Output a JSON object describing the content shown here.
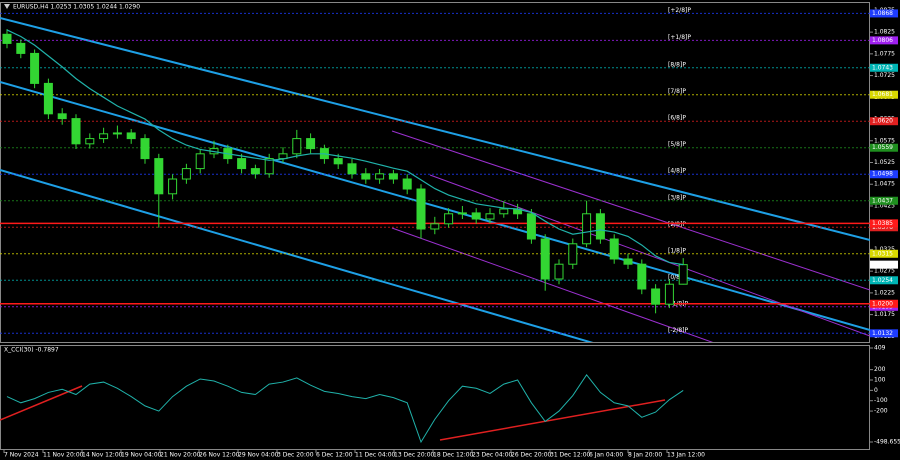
{
  "chart_data": [
    {
      "type": "candlestick",
      "title": "EURUSD,H4 1.0253 1.0305 1.0244 1.0290",
      "open": [
        1.082,
        1.0799,
        1.0776,
        1.0707,
        1.0637,
        1.0626,
        1.0568,
        1.058,
        1.0591,
        1.0593,
        1.058,
        1.0534,
        1.0453,
        1.0487,
        1.0511,
        1.0545,
        1.0557,
        1.0534,
        1.0511,
        1.0499,
        1.0534,
        1.0545,
        1.058,
        1.0557,
        1.0534,
        1.0522,
        1.0499,
        1.0487,
        1.0499,
        1.0487,
        1.0464,
        1.0372,
        1.0384,
        1.0407,
        1.0409,
        1.0395,
        1.0407,
        1.0418,
        1.0407,
        1.0349,
        1.0257,
        1.0291,
        1.0338,
        1.0407,
        1.0349,
        1.0303,
        1.0291,
        1.0234,
        1.0199,
        1.0245
      ],
      "high": [
        1.0832,
        1.0808,
        1.0785,
        1.0718,
        1.065,
        1.0636,
        1.0592,
        1.0605,
        1.061,
        1.0602,
        1.059,
        1.0545,
        1.0498,
        1.0522,
        1.0556,
        1.0575,
        1.0566,
        1.0545,
        1.052,
        1.0545,
        1.056,
        1.06,
        1.0592,
        1.0566,
        1.0545,
        1.0533,
        1.0512,
        1.051,
        1.0508,
        1.0498,
        1.0475,
        1.04,
        1.042,
        1.0425,
        1.042,
        1.042,
        1.0436,
        1.043,
        1.0418,
        1.036,
        1.0302,
        1.035,
        1.0437,
        1.0418,
        1.036,
        1.0315,
        1.0302,
        1.0245,
        1.0256,
        1.0305
      ],
      "low": [
        1.0788,
        1.0765,
        1.0696,
        1.0625,
        1.0612,
        1.0556,
        1.0557,
        1.057,
        1.058,
        1.0568,
        1.0522,
        1.0375,
        1.044,
        1.0476,
        1.05,
        1.0535,
        1.0522,
        1.05,
        1.0488,
        1.049,
        1.0525,
        1.0535,
        1.0546,
        1.0522,
        1.051,
        1.0488,
        1.0476,
        1.0476,
        1.0476,
        1.0452,
        1.035,
        1.036,
        1.0375,
        1.0395,
        1.0384,
        1.0385,
        1.0398,
        1.0395,
        1.0338,
        1.023,
        1.0245,
        1.028,
        1.033,
        1.0338,
        1.0292,
        1.028,
        1.0222,
        1.0178,
        1.019,
        1.0244
      ],
      "close": [
        1.0799,
        1.0776,
        1.0707,
        1.0637,
        1.0626,
        1.0568,
        1.058,
        1.0591,
        1.0593,
        1.058,
        1.0534,
        1.0453,
        1.0487,
        1.0511,
        1.0545,
        1.0557,
        1.0534,
        1.0511,
        1.0499,
        1.0534,
        1.0545,
        1.058,
        1.0557,
        1.0534,
        1.0522,
        1.0499,
        1.0487,
        1.0499,
        1.0487,
        1.0464,
        1.0372,
        1.0384,
        1.0407,
        1.0409,
        1.0395,
        1.0407,
        1.0418,
        1.0407,
        1.0349,
        1.0257,
        1.0291,
        1.0338,
        1.0407,
        1.0349,
        1.0303,
        1.0291,
        1.0234,
        1.0199,
        1.0245,
        1.029
      ],
      "color": "#33d633",
      "ma": [
        1.083,
        1.0815,
        1.0795,
        1.077,
        1.0745,
        1.0718,
        1.0695,
        1.0675,
        1.0655,
        1.064,
        1.0625,
        1.06,
        1.058,
        1.0565,
        1.0555,
        1.055,
        1.0545,
        1.054,
        1.0535,
        1.053,
        1.0533,
        1.054,
        1.0545,
        1.0545,
        1.054,
        1.0535,
        1.0528,
        1.052,
        1.0512,
        1.0505,
        1.0485,
        1.0465,
        1.045,
        1.044,
        1.043,
        1.0425,
        1.042,
        1.0418,
        1.041,
        1.039,
        1.0372,
        1.036,
        1.0365,
        1.037,
        1.0365,
        1.0355,
        1.0335,
        1.031,
        1.0295,
        1.029
      ],
      "ma_color": "#20b2aa",
      "levels": [
        {
          "label": "[+2/8]P",
          "value": 1.0868,
          "tag": "1.0868",
          "color": "#1e3cff"
        },
        {
          "label": "[+1/8]P",
          "value": 1.0806,
          "tag": "1.0806",
          "color": "#a020f0"
        },
        {
          "label": "[8/8]P",
          "value": 1.0743,
          "tag": "1.0743",
          "color": "#00b5b5"
        },
        {
          "label": "[7/8]P",
          "value": 1.0681,
          "tag": "1.0681",
          "color": "#d8d800"
        },
        {
          "label": "[6/8]P",
          "value": 1.062,
          "tag": "1.0620",
          "color": "#e02020"
        },
        {
          "label": "[5/8]P",
          "value": 1.0559,
          "tag": "1.0559",
          "color": "#1f8f1f"
        },
        {
          "label": "[4/8]P",
          "value": 1.0498,
          "tag": "1.0498",
          "color": "#1e3cff"
        },
        {
          "label": "[3/8]P",
          "value": 1.0437,
          "tag": "1.0437",
          "color": "#1f8f1f"
        },
        {
          "label": "[2/8]P",
          "value": 1.0376,
          "tag": "1.0376",
          "color": "#e02020"
        },
        {
          "label": "[1/8]P",
          "value": 1.0315,
          "tag": "1.0315",
          "color": "#d8d800"
        },
        {
          "label": "[0/8]P",
          "value": 1.0254,
          "tag": "1.0254",
          "color": "#00b5b5"
        },
        {
          "label": "[-1/8]P",
          "value": 1.0193,
          "tag": "1.0193",
          "color": "#a020f0"
        },
        {
          "label": "[-2/8]P",
          "value": 1.0132,
          "tag": "1.0132",
          "color": "#1e3cff"
        }
      ],
      "red_levels": [
        {
          "value": 1.0385,
          "tag": "1.0385"
        },
        {
          "value": 1.02,
          "tag": "1.0200"
        }
      ],
      "red_color": "#ff1a1a",
      "last_price": {
        "value": 1.029,
        "label": "1.0290"
      },
      "ylim": [
        1.0112,
        1.0892
      ],
      "yticks": [
        1.0875,
        1.0825,
        1.0775,
        1.0725,
        1.0675,
        1.0625,
        1.0575,
        1.0525,
        1.0475,
        1.0425,
        1.0375,
        1.0325,
        1.0275,
        1.0225,
        1.0175,
        1.0125
      ],
      "x_labels": [
        "7 Nov 2024",
        "11 Nov 20:00",
        "14 Nov 12:00",
        "19 Nov 04:00",
        "21 Nov 20:00",
        "26 Nov 12:00",
        "29 Nov 04:00",
        "3 Dec 20:00",
        "6 Dec 12:00",
        "11 Dec 04:00",
        "13 Dec 20:00",
        "18 Dec 12:00",
        "23 Dec 04:00",
        "26 Dec 20:00",
        "31 Dec 12:00",
        "6 Jan 04:00",
        "8 Jan 20:00",
        "13 Jan 12:00"
      ]
    },
    {
      "type": "line",
      "title": "X_CCI(30) -0.7897",
      "values": [
        -60,
        -120,
        -80,
        -20,
        10,
        -40,
        60,
        80,
        20,
        -60,
        -150,
        -200,
        -60,
        40,
        110,
        90,
        40,
        -20,
        -40,
        60,
        80,
        120,
        50,
        -10,
        -30,
        -60,
        -80,
        -40,
        -70,
        -120,
        -498.655,
        -280,
        -100,
        40,
        20,
        -30,
        60,
        100,
        -120,
        -300,
        -200,
        -50,
        150,
        -20,
        -120,
        -150,
        -260,
        -210,
        -90,
        -0.7897
      ],
      "color": "#20b2aa",
      "ylim": [
        -498.655,
        409
      ],
      "yticks": [
        409,
        200,
        100,
        0,
        -100,
        -200,
        -498.655
      ]
    }
  ]
}
